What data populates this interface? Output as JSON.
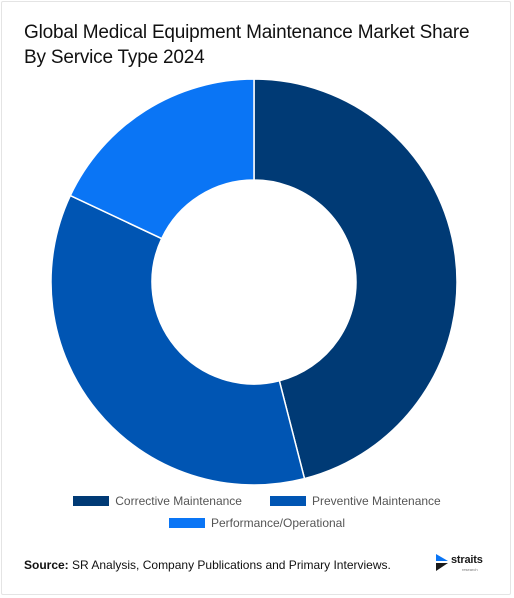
{
  "chart_data": {
    "type": "pie",
    "donut": true,
    "title": "Global Medical Equipment Maintenance Market Share By Service Type 2024",
    "categories": [
      "Corrective Maintenance",
      "Preventive Maintenance",
      "Performance/Operational"
    ],
    "values": [
      46,
      36,
      18
    ],
    "colors": [
      "#003a75",
      "#0055b3",
      "#0a75f5"
    ],
    "legend_position": "bottom"
  },
  "source": {
    "label": "Source:",
    "text": "SR Analysis, Company Publications and Primary Interviews."
  },
  "logo": {
    "name": "straits",
    "tagline": "research"
  }
}
